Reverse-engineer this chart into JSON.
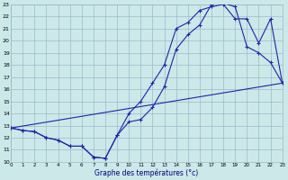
{
  "xlabel": "Graphe des températures (°c)",
  "bg_color": "#cce8e8",
  "line_color": "#2222aa",
  "grid_color": "#99bbcc",
  "xlim": [
    0,
    23
  ],
  "ylim": [
    10,
    23
  ],
  "yticks": [
    10,
    11,
    12,
    13,
    14,
    15,
    16,
    17,
    18,
    19,
    20,
    21,
    22,
    23
  ],
  "xticks": [
    0,
    1,
    2,
    3,
    4,
    5,
    6,
    7,
    8,
    9,
    10,
    11,
    12,
    13,
    14,
    15,
    16,
    17,
    18,
    19,
    20,
    21,
    22,
    23
  ],
  "curve1_x": [
    0,
    1,
    2,
    3,
    4,
    5,
    6,
    7,
    8,
    9,
    10,
    11,
    12,
    13,
    14,
    15,
    16,
    17,
    18,
    19,
    20,
    21,
    22,
    23
  ],
  "curve1_y": [
    12.8,
    12.6,
    12.5,
    12.0,
    11.8,
    11.3,
    11.3,
    10.4,
    10.3,
    12.2,
    13.3,
    13.5,
    14.5,
    16.2,
    19.3,
    20.5,
    21.3,
    23.0,
    23.1,
    22.8,
    19.5,
    19.0,
    18.2,
    16.5
  ],
  "curve2_x": [
    0,
    1,
    2,
    3,
    4,
    5,
    6,
    7,
    8,
    9,
    10,
    11,
    12,
    13,
    14,
    15,
    16,
    17,
    18,
    19,
    20,
    21,
    22,
    23
  ],
  "curve2_y": [
    12.8,
    12.6,
    12.5,
    12.0,
    11.8,
    11.3,
    11.3,
    10.4,
    10.3,
    12.2,
    14.0,
    15.0,
    16.5,
    18.0,
    21.0,
    21.5,
    22.5,
    22.8,
    23.0,
    21.8,
    21.8,
    19.8,
    21.8,
    16.5
  ],
  "line3_x": [
    0,
    23
  ],
  "line3_y": [
    12.8,
    16.5
  ]
}
